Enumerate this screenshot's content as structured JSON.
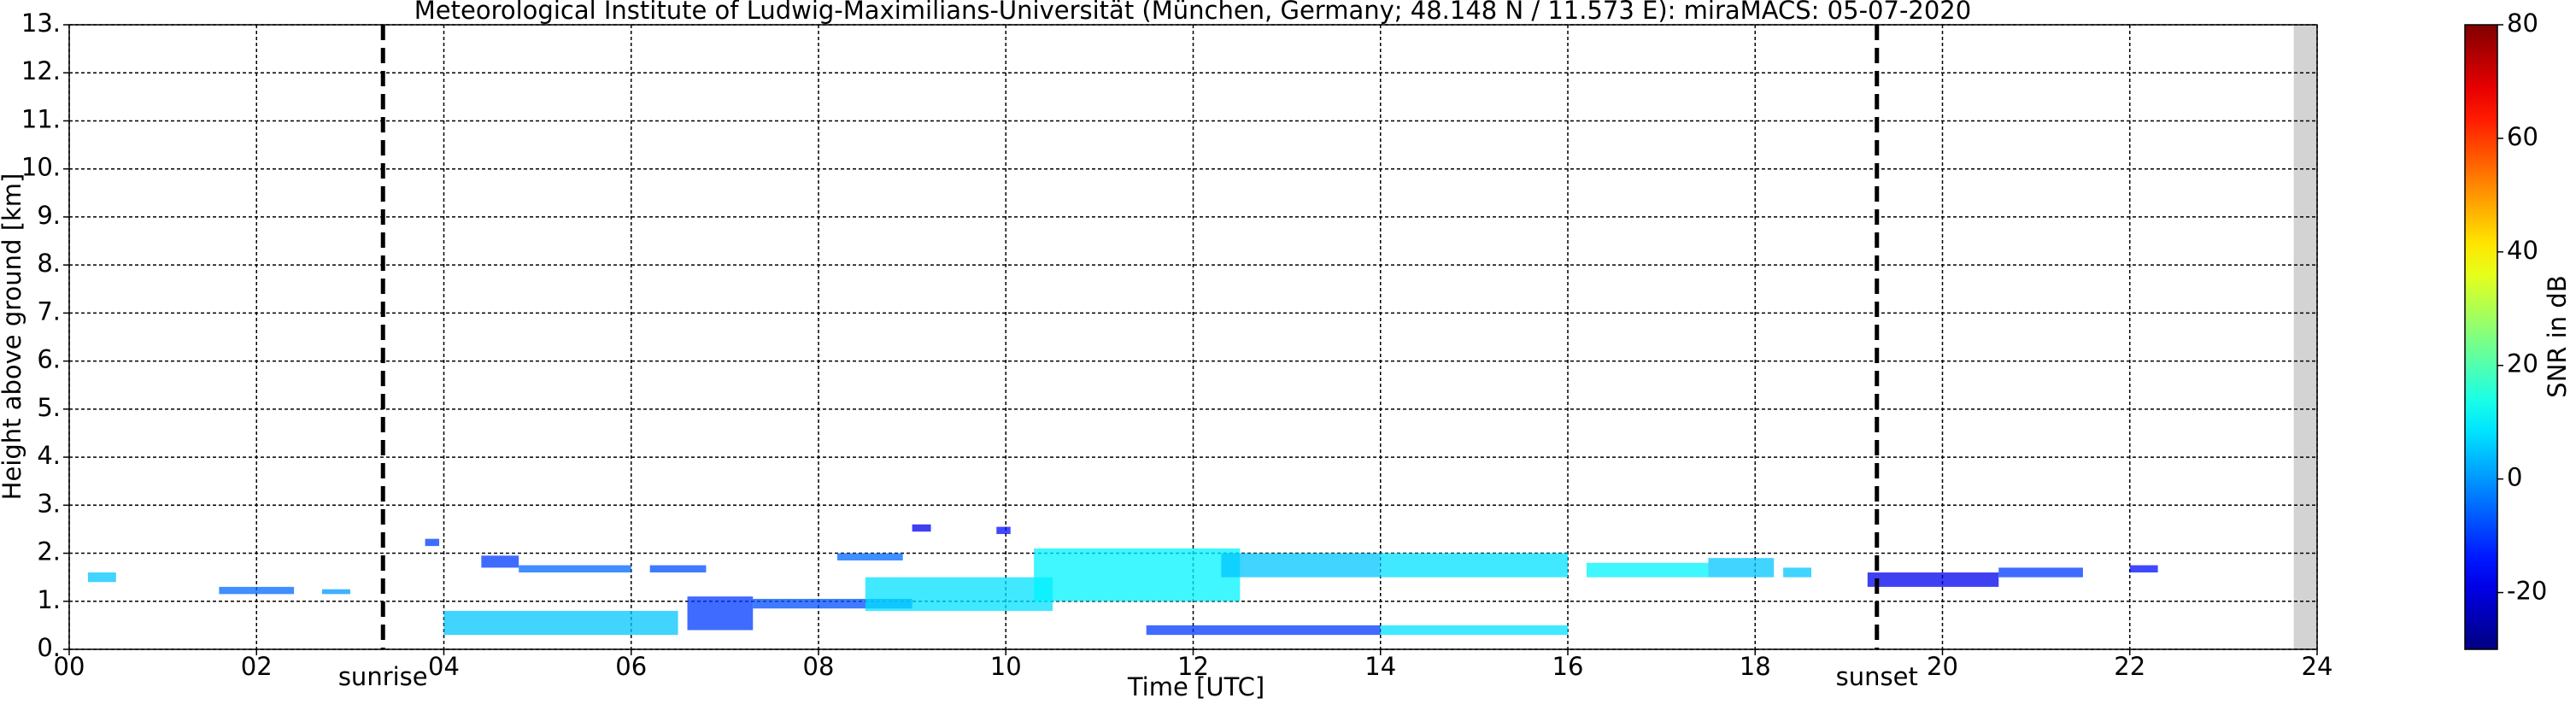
{
  "chart_data": {
    "type": "radar-echo",
    "title": "Meteorological Institute of Ludwig-Maximilians-Universität (München, Germany; 48.148 N / 11.573 E):    miraMACS: 05-07-2020",
    "x_label": "Time [UTC]",
    "y_label": "Height above ground [km]",
    "colorbar_label": "SNR in dB",
    "colormap": "jet",
    "grid": true,
    "xlim": [
      0,
      24
    ],
    "xticks": [
      {
        "value": 0,
        "label": "00"
      },
      {
        "value": 2,
        "label": "02"
      },
      {
        "value": 4,
        "label": "04"
      },
      {
        "value": 6,
        "label": "06"
      },
      {
        "value": 8,
        "label": "08"
      },
      {
        "value": 10,
        "label": "10"
      },
      {
        "value": 12,
        "label": "12"
      },
      {
        "value": 14,
        "label": "14"
      },
      {
        "value": 16,
        "label": "16"
      },
      {
        "value": 18,
        "label": "18"
      },
      {
        "value": 20,
        "label": "20"
      },
      {
        "value": 22,
        "label": "22"
      },
      {
        "value": 24,
        "label": "24"
      }
    ],
    "ylim": [
      0,
      13
    ],
    "yticks": [
      {
        "value": 0,
        "label": "0."
      },
      {
        "value": 1,
        "label": "1."
      },
      {
        "value": 2,
        "label": "2."
      },
      {
        "value": 3,
        "label": "3."
      },
      {
        "value": 4,
        "label": "4."
      },
      {
        "value": 5,
        "label": "5."
      },
      {
        "value": 6,
        "label": "6."
      },
      {
        "value": 7,
        "label": "7."
      },
      {
        "value": 8,
        "label": "8."
      },
      {
        "value": 9,
        "label": "9."
      },
      {
        "value": 10,
        "label": "10."
      },
      {
        "value": 11,
        "label": "11."
      },
      {
        "value": 12,
        "label": "12."
      },
      {
        "value": 13,
        "label": "13."
      }
    ],
    "clim": [
      -30,
      80
    ],
    "cticks": [
      -20,
      0,
      20,
      40,
      60,
      80
    ],
    "no_data_from": 23.75,
    "annotations": [
      {
        "label": "sunrise",
        "x": 3.35
      },
      {
        "label": "sunset",
        "x": 19.3
      }
    ],
    "echoes": [
      {
        "t0": 0.2,
        "t1": 0.5,
        "h0": 1.4,
        "h1": 1.6,
        "snr": 5
      },
      {
        "t0": 1.6,
        "t1": 2.4,
        "h0": 1.15,
        "h1": 1.3,
        "snr": -5
      },
      {
        "t0": 2.7,
        "t1": 3.0,
        "h0": 1.15,
        "h1": 1.25,
        "snr": 0
      },
      {
        "t0": 3.8,
        "t1": 3.95,
        "h0": 2.15,
        "h1": 2.3,
        "snr": -10
      },
      {
        "t0": 4.4,
        "t1": 4.8,
        "h0": 1.7,
        "h1": 1.95,
        "snr": -10
      },
      {
        "t0": 4.8,
        "t1": 6.0,
        "h0": 1.6,
        "h1": 1.75,
        "snr": -5
      },
      {
        "t0": 6.2,
        "t1": 6.8,
        "h0": 1.6,
        "h1": 1.75,
        "snr": -8
      },
      {
        "t0": 4.0,
        "t1": 6.5,
        "h0": 0.3,
        "h1": 0.8,
        "snr": 5
      },
      {
        "t0": 6.6,
        "t1": 7.3,
        "h0": 0.4,
        "h1": 1.1,
        "snr": -10
      },
      {
        "t0": 7.3,
        "t1": 9.0,
        "h0": 0.85,
        "h1": 1.05,
        "snr": -8
      },
      {
        "t0": 8.2,
        "t1": 8.9,
        "h0": 1.85,
        "h1": 2.0,
        "snr": -5
      },
      {
        "t0": 9.0,
        "t1": 9.2,
        "h0": 2.45,
        "h1": 2.6,
        "snr": -18
      },
      {
        "t0": 9.9,
        "t1": 10.05,
        "h0": 2.4,
        "h1": 2.55,
        "snr": -15
      },
      {
        "t0": 8.5,
        "t1": 10.5,
        "h0": 0.8,
        "h1": 1.5,
        "snr": 8
      },
      {
        "t0": 10.3,
        "t1": 12.5,
        "h0": 1.0,
        "h1": 2.1,
        "snr": 10
      },
      {
        "t0": 12.3,
        "t1": 14.0,
        "h0": 1.5,
        "h1": 2.0,
        "snr": 5
      },
      {
        "t0": 14.0,
        "t1": 16.0,
        "h0": 1.5,
        "h1": 2.0,
        "snr": 8
      },
      {
        "t0": 16.2,
        "t1": 17.5,
        "h0": 1.5,
        "h1": 1.8,
        "snr": 10
      },
      {
        "t0": 17.5,
        "t1": 18.2,
        "h0": 1.5,
        "h1": 1.9,
        "snr": 5
      },
      {
        "t0": 18.3,
        "t1": 18.6,
        "h0": 1.5,
        "h1": 1.7,
        "snr": 5
      },
      {
        "t0": 11.5,
        "t1": 14.0,
        "h0": 0.3,
        "h1": 0.5,
        "snr": -10
      },
      {
        "t0": 14.0,
        "t1": 16.0,
        "h0": 0.3,
        "h1": 0.5,
        "snr": 8
      },
      {
        "t0": 19.2,
        "t1": 20.6,
        "h0": 1.3,
        "h1": 1.6,
        "snr": -18
      },
      {
        "t0": 20.6,
        "t1": 21.5,
        "h0": 1.5,
        "h1": 1.7,
        "snr": -10
      },
      {
        "t0": 22.0,
        "t1": 22.3,
        "h0": 1.6,
        "h1": 1.75,
        "snr": -15
      }
    ]
  }
}
